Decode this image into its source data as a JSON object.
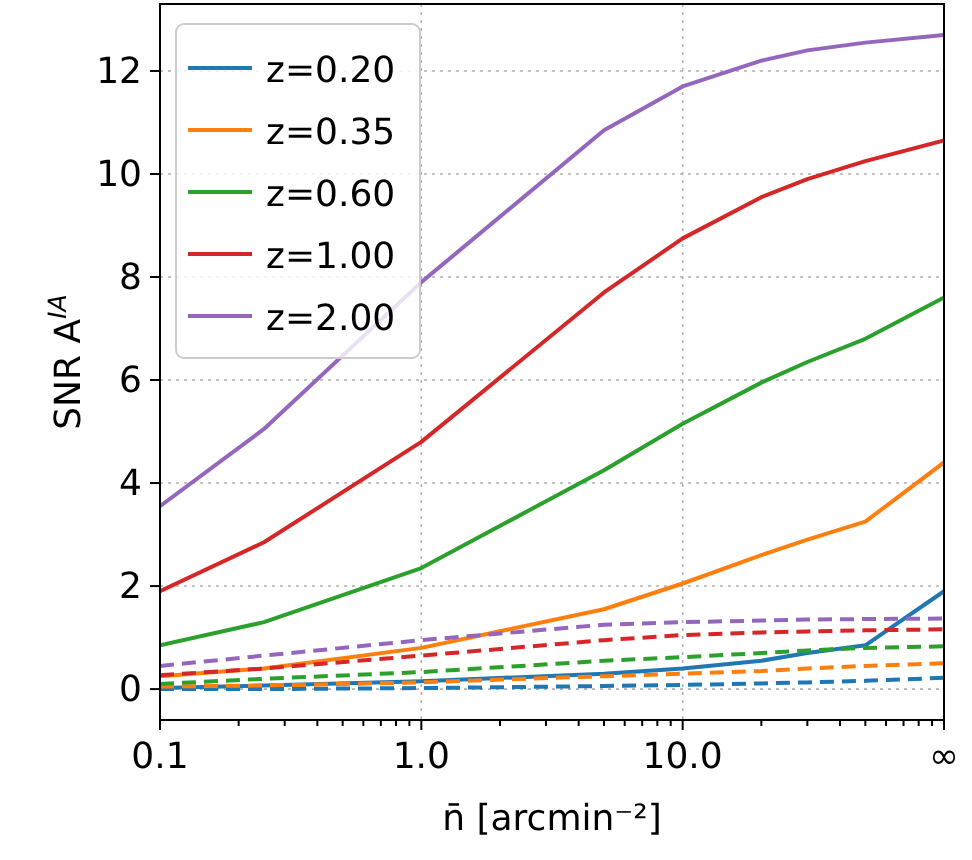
{
  "chart_data": {
    "type": "line",
    "xlabel": "n̄ [arcmin⁻²]",
    "ylabel": "SNR A$^{IA}$",
    "x": [
      0.1,
      0.25,
      1,
      5,
      10,
      20,
      30,
      50,
      100
    ],
    "log": "x",
    "xlim": [
      0.1,
      100
    ],
    "ylim": [
      -0.6,
      13.3
    ],
    "xticks": [
      0.1,
      {
        "value": 0.2,
        "label": null
      },
      {
        "value": 0.3,
        "label": null
      },
      {
        "value": 0.4,
        "label": null
      },
      {
        "value": 0.5,
        "label": null
      },
      {
        "value": 0.6,
        "label": null
      },
      {
        "value": 0.7,
        "label": null
      },
      {
        "value": 0.8,
        "label": null
      },
      {
        "value": 0.9,
        "label": null
      },
      {
        "value": 1,
        "label": "1.0"
      },
      {
        "value": 2,
        "label": null
      },
      {
        "value": 3,
        "label": null
      },
      {
        "value": 4,
        "label": null
      },
      {
        "value": 5,
        "label": null
      },
      {
        "value": 6,
        "label": null
      },
      {
        "value": 7,
        "label": null
      },
      {
        "value": 8,
        "label": null
      },
      {
        "value": 9,
        "label": null
      },
      {
        "value": 10,
        "label": "10.0"
      },
      {
        "value": 20,
        "label": null
      },
      {
        "value": 30,
        "label": null
      },
      {
        "value": 40,
        "label": null
      },
      {
        "value": 50,
        "label": null
      },
      {
        "value": 60,
        "label": null
      },
      {
        "value": 70,
        "label": null
      },
      {
        "value": 80,
        "label": null
      },
      {
        "value": 90,
        "label": null
      },
      {
        "value": 100,
        "label": "∞"
      }
    ],
    "yticks": [
      0,
      2,
      4,
      6,
      8,
      10,
      12
    ],
    "grid": true,
    "legend": "top left",
    "series": [
      {
        "name": "z=0.20",
        "color": "#1f77b4",
        "line_style": "solid",
        "values": [
          0.02,
          0.07,
          0.15,
          0.3,
          0.4,
          0.55,
          0.7,
          0.85,
          1.9
        ]
      },
      {
        "name": "z=0.35",
        "color": "#ff7f0e",
        "line_style": "solid",
        "values": [
          0.25,
          0.4,
          0.8,
          1.55,
          2.05,
          2.6,
          2.9,
          3.25,
          4.4
        ]
      },
      {
        "name": "z=0.60",
        "color": "#2ca02c",
        "line_style": "solid",
        "values": [
          0.85,
          1.3,
          2.35,
          4.25,
          5.15,
          5.95,
          6.35,
          6.8,
          7.6
        ]
      },
      {
        "name": "z=1.00",
        "color": "#d62728",
        "line_style": "solid",
        "values": [
          1.9,
          2.85,
          4.8,
          7.7,
          8.75,
          9.55,
          9.9,
          10.25,
          10.65
        ]
      },
      {
        "name": "z=2.00",
        "color": "#9467bd",
        "line_style": "solid",
        "values": [
          3.55,
          5.05,
          7.9,
          10.85,
          11.7,
          12.2,
          12.4,
          12.55,
          12.7
        ]
      },
      {
        "color": "#1f77b4",
        "line_style": "dashed",
        "values": [
          0.0,
          0.0,
          0.02,
          0.06,
          0.08,
          0.11,
          0.13,
          0.16,
          0.22
        ]
      },
      {
        "color": "#ff7f0e",
        "line_style": "dashed",
        "values": [
          0.05,
          0.07,
          0.13,
          0.25,
          0.3,
          0.35,
          0.4,
          0.45,
          0.5
        ]
      },
      {
        "color": "#2ca02c",
        "line_style": "dashed",
        "values": [
          0.1,
          0.2,
          0.33,
          0.55,
          0.62,
          0.7,
          0.75,
          0.8,
          0.83
        ]
      },
      {
        "color": "#d62728",
        "line_style": "dashed",
        "values": [
          0.27,
          0.4,
          0.65,
          0.95,
          1.05,
          1.1,
          1.12,
          1.14,
          1.16
        ]
      },
      {
        "color": "#9467bd",
        "line_style": "dashed",
        "values": [
          0.45,
          0.65,
          0.95,
          1.25,
          1.3,
          1.33,
          1.35,
          1.36,
          1.37
        ]
      }
    ]
  }
}
